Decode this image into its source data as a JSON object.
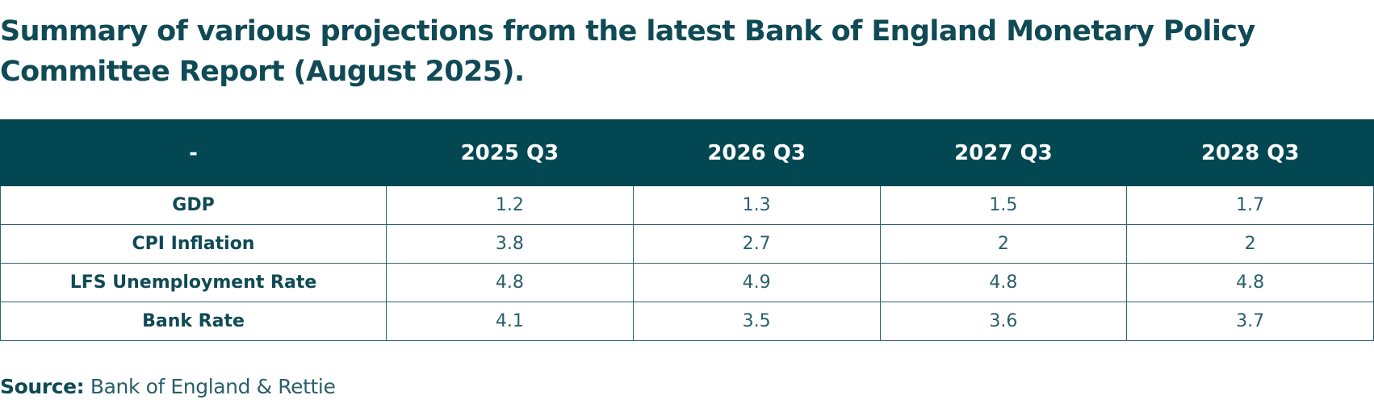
{
  "title": "Summary of various projections from the latest Bank of England Monetary Policy Committee Report (August 2025).",
  "table": {
    "corner": "-",
    "columns": [
      "2025 Q3",
      "2026 Q3",
      "2027 Q3",
      "2028 Q3"
    ],
    "rows": [
      {
        "label": "GDP",
        "values": [
          "1.2",
          "1.3",
          "1.5",
          "1.7"
        ]
      },
      {
        "label": "CPI Inflation",
        "values": [
          "3.8",
          "2.7",
          "2",
          "2"
        ]
      },
      {
        "label": "LFS Unemployment Rate",
        "values": [
          "4.8",
          "4.9",
          "4.8",
          "4.8"
        ]
      },
      {
        "label": "Bank Rate",
        "values": [
          "4.1",
          "3.5",
          "3.6",
          "3.7"
        ]
      }
    ]
  },
  "source": {
    "label": "Source:",
    "text": "Bank of England & Rettie"
  },
  "colors": {
    "header_background": "#034752",
    "text": "#0f4a55",
    "border": "#2e6470"
  }
}
